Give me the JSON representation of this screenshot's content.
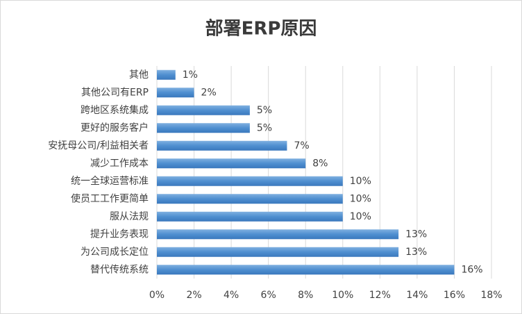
{
  "chart_data": {
    "type": "hbar",
    "title": "部署ERP原因",
    "categories": [
      "其他",
      "其他公司有ERP",
      "跨地区系统集成",
      "更好的服务客户",
      "安抚母公司/利益相关者",
      "减少工作成本",
      "统一全球运营标准",
      "使员工工作更简单",
      "服从法规",
      "提升业务表现",
      "为公司成长定位",
      "替代传统系统"
    ],
    "values": [
      1,
      2,
      5,
      5,
      7,
      8,
      10,
      10,
      10,
      13,
      13,
      16
    ],
    "value_labels": [
      "1%",
      "2%",
      "5%",
      "5%",
      "7%",
      "8%",
      "10%",
      "10%",
      "10%",
      "13%",
      "13%",
      "16%"
    ],
    "color": "#4f8fd0",
    "xlim": [
      0,
      18
    ],
    "xticks": [
      {
        "value": 0,
        "label": "0%"
      },
      {
        "value": 2,
        "label": "2%"
      },
      {
        "value": 4,
        "label": "4%"
      },
      {
        "value": 6,
        "label": "6%"
      },
      {
        "value": 8,
        "label": "8%"
      },
      {
        "value": 10,
        "label": "10%"
      },
      {
        "value": 12,
        "label": "12%"
      },
      {
        "value": 14,
        "label": "14%"
      },
      {
        "value": 16,
        "label": "16%"
      },
      {
        "value": 18,
        "label": "18%"
      }
    ],
    "grid": true
  }
}
